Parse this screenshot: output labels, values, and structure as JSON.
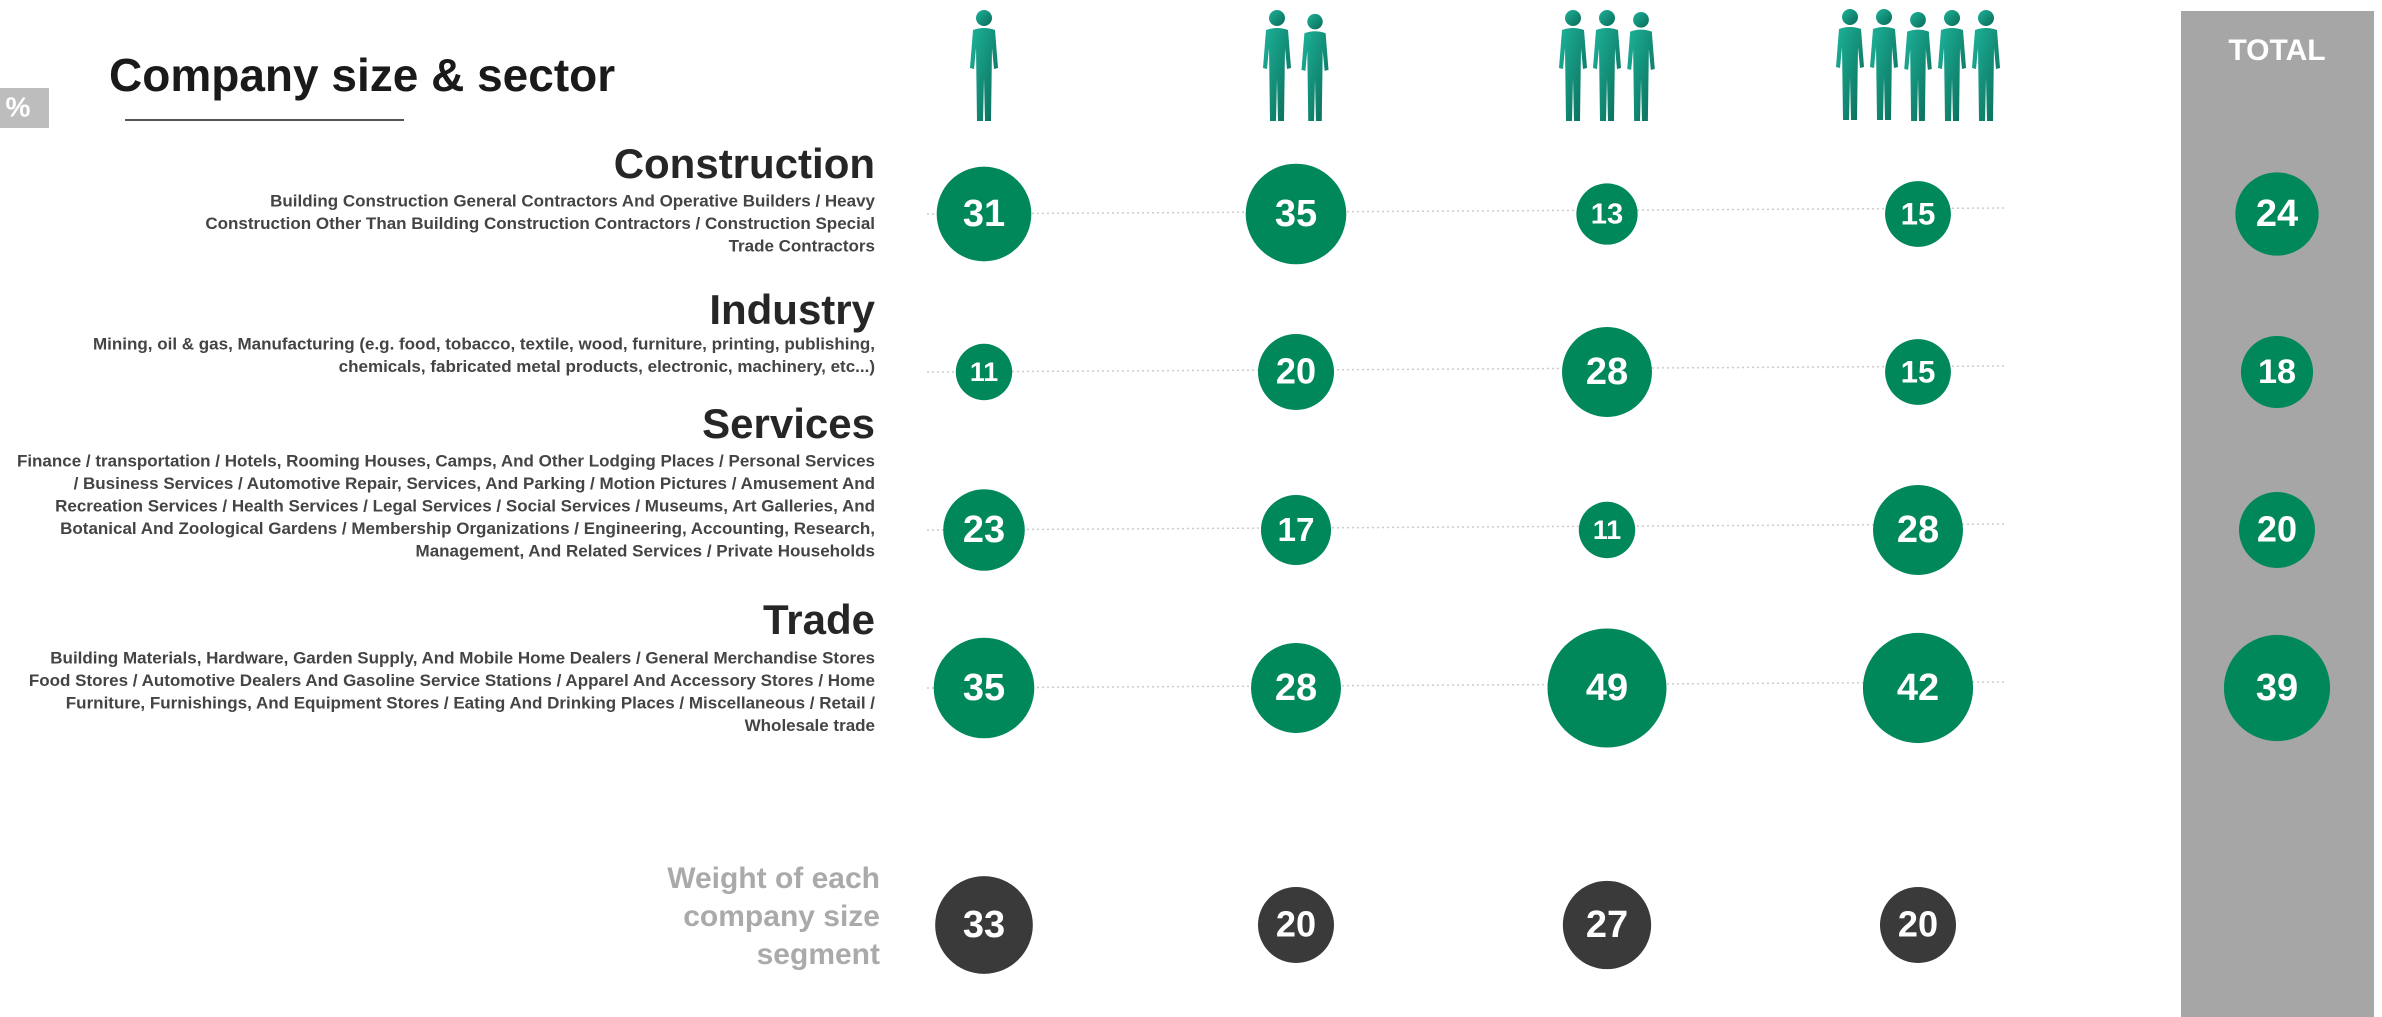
{
  "chart_data": {
    "type": "bubble-matrix",
    "title": "Company size & sector",
    "unit_label": "%",
    "total_label": "TOTAL",
    "color": "#00875a",
    "weight_color": "#3a3a3a",
    "rows": [
      {
        "name": "Construction",
        "description": [
          "Building Construction General Contractors And Operative Builders / Heavy",
          "Construction Other Than Building Construction Contractors / Construction Special",
          "Trade Contractors"
        ],
        "values": [
          31,
          35,
          13,
          15
        ],
        "total": 24
      },
      {
        "name": "Industry",
        "description": [
          "Mining, oil & gas, Manufacturing (e.g. food, tobacco, textile, wood, furniture, printing, publishing,",
          "chemicals, fabricated metal products, electronic, machinery, etc...)"
        ],
        "values": [
          11,
          20,
          28,
          15
        ],
        "total": 18
      },
      {
        "name": "Services",
        "description": [
          "Finance / transportation / Hotels, Rooming Houses, Camps, And Other Lodging Places / Personal Services",
          "/ Business Services / Automotive Repair, Services, And Parking / Motion Pictures / Amusement And",
          "Recreation Services / Health Services / Legal Services / Social Services / Museums, Art Galleries, And",
          "Botanical And Zoological Gardens / Membership Organizations / Engineering, Accounting, Research,",
          "Management, And Related Services / Private Households"
        ],
        "values": [
          23,
          17,
          11,
          28
        ],
        "total": 20
      },
      {
        "name": "Trade",
        "description": [
          "Building Materials, Hardware, Garden Supply, And Mobile Home Dealers / General Merchandise Stores",
          "Food Stores / Automotive Dealers And Gasoline Service Stations / Apparel And Accessory Stores / Home",
          "Furniture, Furnishings, And Equipment Stores / Eating And Drinking Places / Miscellaneous / Retail /",
          "Wholesale trade"
        ],
        "values": [
          35,
          28,
          49,
          42
        ],
        "total": 39
      }
    ],
    "weight_label": [
      "Weight of each",
      "company size",
      "segment"
    ],
    "weights": [
      33,
      20,
      27,
      20
    ]
  }
}
